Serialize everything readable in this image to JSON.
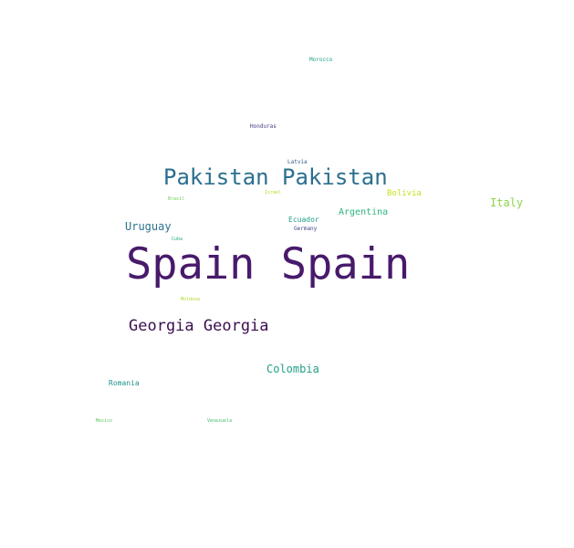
{
  "words": [
    {
      "id": "spain",
      "text": "Spain Spain",
      "color": "#481a6c"
    },
    {
      "id": "pakistan",
      "text": "Pakistan Pakistan",
      "color": "#2b6f8e"
    },
    {
      "id": "georgia",
      "text": "Georgia Georgia",
      "color": "#3b0f4f"
    },
    {
      "id": "colombia",
      "text": "Colombia",
      "color": "#25a087"
    },
    {
      "id": "uruguay",
      "text": "Uruguay",
      "color": "#2c728e"
    },
    {
      "id": "italy",
      "text": "Italy",
      "color": "#8bd646"
    },
    {
      "id": "argentina",
      "text": "Argentina",
      "color": "#2fb47c"
    },
    {
      "id": "bolivia",
      "text": "Bolivia",
      "color": "#c8e020"
    },
    {
      "id": "ecuador",
      "text": "Ecuador",
      "color": "#1f9e89"
    },
    {
      "id": "romania",
      "text": "Romania",
      "color": "#21918c"
    },
    {
      "id": "germany",
      "text": "Germany",
      "color": "#3e4a89"
    },
    {
      "id": "latvia",
      "text": "Latvia",
      "color": "#355f8d"
    },
    {
      "id": "honduras",
      "text": "Honduras",
      "color": "#443983"
    },
    {
      "id": "morocco",
      "text": "Morocco",
      "color": "#1fa187"
    },
    {
      "id": "brasil",
      "text": "Brasil",
      "color": "#6ece58"
    },
    {
      "id": "israel",
      "text": "Israel",
      "color": "#b5de2b"
    },
    {
      "id": "cuba",
      "text": "Cuba",
      "color": "#29af7f"
    },
    {
      "id": "moldova",
      "text": "Moldova",
      "color": "#addc30"
    },
    {
      "id": "mexico",
      "text": "Mexico",
      "color": "#5ec962"
    },
    {
      "id": "venezuela",
      "text": "Venezuela",
      "color": "#44bf70"
    }
  ]
}
